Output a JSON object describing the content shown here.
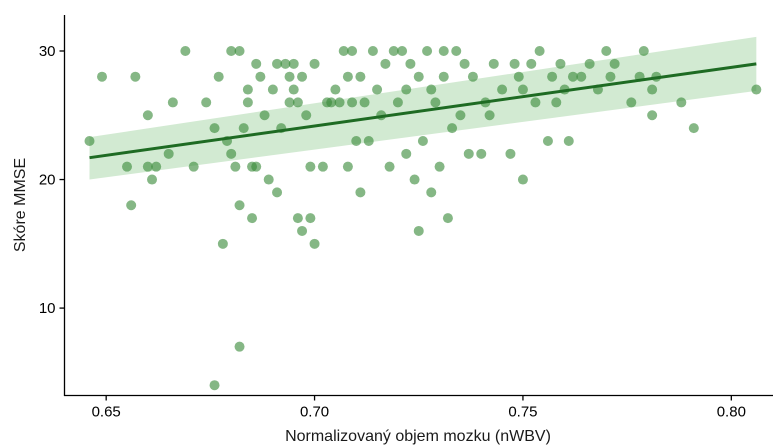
{
  "chart_data": {
    "type": "scatter",
    "xlabel": "Normalizovaný objem mozku (nWBV)",
    "ylabel": "Skóre MMSE",
    "xlim": [
      0.64,
      0.81
    ],
    "ylim": [
      3.2,
      32.8
    ],
    "x_ticks": [
      0.65,
      0.7,
      0.75,
      0.8
    ],
    "x_tick_labels": [
      "0.65",
      "0.70",
      "0.75",
      "0.80"
    ],
    "y_ticks": [
      10,
      20,
      30
    ],
    "y_tick_labels": [
      "10",
      "20",
      "30"
    ],
    "grid": false,
    "legend": "none",
    "colors": {
      "points": "#3a8a3a",
      "trend": "#1e6b23",
      "ci_band": "#a5d6a5"
    },
    "trend": {
      "x": [
        0.646,
        0.806
      ],
      "y": [
        21.7,
        29.0
      ],
      "ci_low": [
        20.0,
        26.9
      ],
      "ci_high": [
        23.3,
        31.1
      ]
    },
    "points": [
      [
        0.646,
        23
      ],
      [
        0.649,
        28
      ],
      [
        0.655,
        21
      ],
      [
        0.656,
        18
      ],
      [
        0.657,
        28
      ],
      [
        0.66,
        21
      ],
      [
        0.66,
        25
      ],
      [
        0.661,
        20
      ],
      [
        0.662,
        21
      ],
      [
        0.665,
        22
      ],
      [
        0.666,
        26
      ],
      [
        0.669,
        30
      ],
      [
        0.671,
        21
      ],
      [
        0.674,
        26
      ],
      [
        0.676,
        4
      ],
      [
        0.676,
        24
      ],
      [
        0.677,
        28
      ],
      [
        0.678,
        15
      ],
      [
        0.679,
        23
      ],
      [
        0.68,
        30
      ],
      [
        0.68,
        22
      ],
      [
        0.681,
        21
      ],
      [
        0.682,
        30
      ],
      [
        0.682,
        18
      ],
      [
        0.682,
        7
      ],
      [
        0.683,
        24
      ],
      [
        0.684,
        26
      ],
      [
        0.684,
        27
      ],
      [
        0.685,
        21
      ],
      [
        0.685,
        17
      ],
      [
        0.686,
        29
      ],
      [
        0.686,
        21
      ],
      [
        0.687,
        28
      ],
      [
        0.688,
        25
      ],
      [
        0.689,
        20
      ],
      [
        0.69,
        27
      ],
      [
        0.691,
        29
      ],
      [
        0.691,
        19
      ],
      [
        0.692,
        24
      ],
      [
        0.693,
        29
      ],
      [
        0.694,
        26
      ],
      [
        0.694,
        28
      ],
      [
        0.695,
        29
      ],
      [
        0.695,
        27
      ],
      [
        0.696,
        26
      ],
      [
        0.696,
        17
      ],
      [
        0.697,
        28
      ],
      [
        0.697,
        16
      ],
      [
        0.698,
        25
      ],
      [
        0.699,
        17
      ],
      [
        0.699,
        21
      ],
      [
        0.7,
        29
      ],
      [
        0.7,
        15
      ],
      [
        0.702,
        21
      ],
      [
        0.703,
        26
      ],
      [
        0.704,
        26
      ],
      [
        0.705,
        27
      ],
      [
        0.706,
        26
      ],
      [
        0.707,
        30
      ],
      [
        0.708,
        28
      ],
      [
        0.708,
        21
      ],
      [
        0.709,
        30
      ],
      [
        0.709,
        26
      ],
      [
        0.71,
        23
      ],
      [
        0.711,
        28
      ],
      [
        0.711,
        19
      ],
      [
        0.712,
        26
      ],
      [
        0.713,
        23
      ],
      [
        0.714,
        30
      ],
      [
        0.715,
        27
      ],
      [
        0.716,
        25
      ],
      [
        0.717,
        29
      ],
      [
        0.718,
        21
      ],
      [
        0.719,
        30
      ],
      [
        0.72,
        26
      ],
      [
        0.721,
        30
      ],
      [
        0.722,
        27
      ],
      [
        0.722,
        22
      ],
      [
        0.723,
        29
      ],
      [
        0.724,
        20
      ],
      [
        0.725,
        28
      ],
      [
        0.725,
        16
      ],
      [
        0.726,
        23
      ],
      [
        0.727,
        30
      ],
      [
        0.728,
        27
      ],
      [
        0.728,
        19
      ],
      [
        0.729,
        26
      ],
      [
        0.73,
        21
      ],
      [
        0.731,
        30
      ],
      [
        0.731,
        28
      ],
      [
        0.732,
        17
      ],
      [
        0.733,
        24
      ],
      [
        0.734,
        30
      ],
      [
        0.735,
        25
      ],
      [
        0.736,
        29
      ],
      [
        0.737,
        22
      ],
      [
        0.738,
        28
      ],
      [
        0.74,
        22
      ],
      [
        0.741,
        26
      ],
      [
        0.742,
        25
      ],
      [
        0.743,
        29
      ],
      [
        0.745,
        27
      ],
      [
        0.747,
        22
      ],
      [
        0.748,
        29
      ],
      [
        0.749,
        28
      ],
      [
        0.75,
        20
      ],
      [
        0.75,
        27
      ],
      [
        0.752,
        29
      ],
      [
        0.753,
        26
      ],
      [
        0.754,
        30
      ],
      [
        0.756,
        23
      ],
      [
        0.757,
        28
      ],
      [
        0.758,
        26
      ],
      [
        0.759,
        29
      ],
      [
        0.76,
        27
      ],
      [
        0.761,
        23
      ],
      [
        0.762,
        28
      ],
      [
        0.764,
        28
      ],
      [
        0.766,
        29
      ],
      [
        0.768,
        27
      ],
      [
        0.77,
        30
      ],
      [
        0.771,
        28
      ],
      [
        0.772,
        29
      ],
      [
        0.776,
        26
      ],
      [
        0.778,
        28
      ],
      [
        0.779,
        30
      ],
      [
        0.781,
        27
      ],
      [
        0.781,
        25
      ],
      [
        0.782,
        28
      ],
      [
        0.788,
        26
      ],
      [
        0.791,
        24
      ],
      [
        0.806,
        27
      ]
    ]
  }
}
